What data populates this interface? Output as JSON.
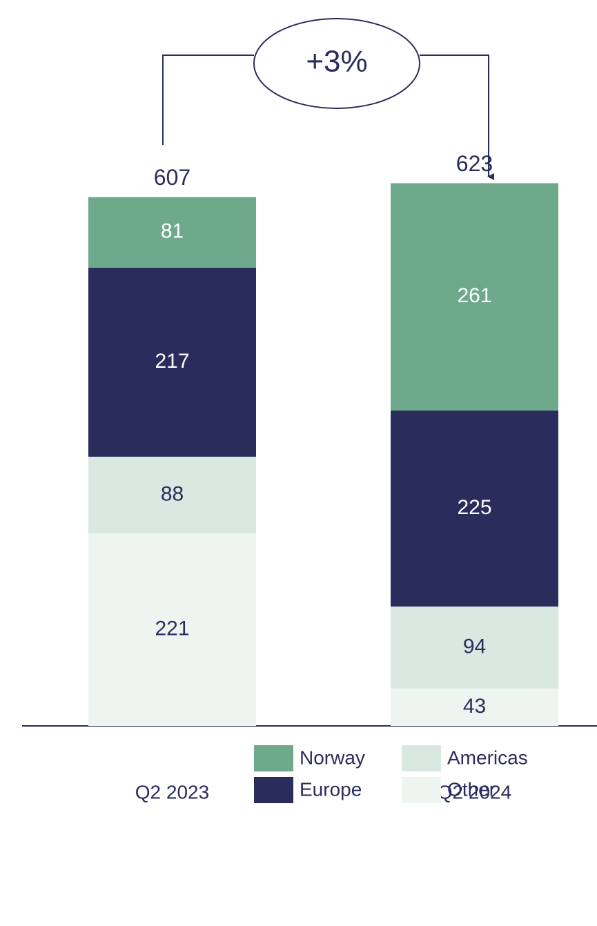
{
  "chart_data": {
    "type": "stacked_bar",
    "categories": [
      "Q2 2023",
      "Q2 2024"
    ],
    "series": [
      {
        "name": "Norway",
        "color": "#6fa98c",
        "values": [
          81,
          261
        ]
      },
      {
        "name": "Europe",
        "color": "#2a2d5c",
        "values": [
          217,
          225
        ]
      },
      {
        "name": "Americas",
        "color": "#d9e8e1",
        "values": [
          88,
          94
        ]
      },
      {
        "name": "Other",
        "color": "#eef5f1",
        "values": [
          221,
          43
        ]
      }
    ],
    "totals": [
      607,
      623
    ],
    "annotation": "+3%",
    "ylim": [
      0,
      650
    ]
  }
}
